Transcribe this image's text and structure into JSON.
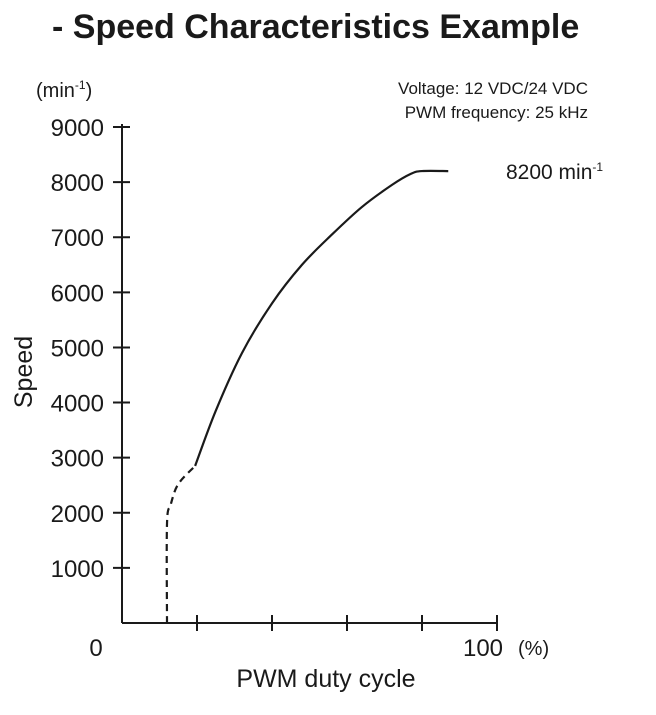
{
  "chart_data": {
    "type": "line",
    "title": "- Speed Characteristics Example",
    "notes": [
      "Voltage: 12 VDC/24 VDC",
      "PWM frequency: 25 kHz"
    ],
    "ylabel": "Speed",
    "y_unit": {
      "base": "(min",
      "sup": "-1",
      "close": ")"
    },
    "xlabel": "PWM duty cycle",
    "x_unit": "(%)",
    "ylim": [
      0,
      9000
    ],
    "xlim": [
      0,
      100
    ],
    "y_ticks": [
      1000,
      2000,
      3000,
      4000,
      5000,
      6000,
      7000,
      8000,
      9000
    ],
    "x_ticks": [
      20,
      40,
      60,
      80,
      100
    ],
    "x_tick_labels": [
      {
        "x": 0,
        "label": "0"
      },
      {
        "x": 100,
        "label": "100"
      }
    ],
    "grid": false,
    "series": [
      {
        "style": "dashed",
        "points": [
          [
            12,
            0
          ],
          [
            12,
            1800
          ],
          [
            13,
            2150
          ],
          [
            15,
            2520
          ],
          [
            19.5,
            2850
          ]
        ]
      },
      {
        "style": "solid",
        "points": [
          [
            19.5,
            2850
          ],
          [
            25,
            3850
          ],
          [
            32,
            4900
          ],
          [
            40,
            5800
          ],
          [
            48,
            6500
          ],
          [
            56,
            7050
          ],
          [
            64,
            7550
          ],
          [
            72,
            7950
          ],
          [
            77,
            8150
          ],
          [
            80,
            8200
          ],
          [
            87,
            8200
          ]
        ]
      }
    ],
    "annotation": {
      "base": "8200 min",
      "sup": "-1"
    }
  }
}
